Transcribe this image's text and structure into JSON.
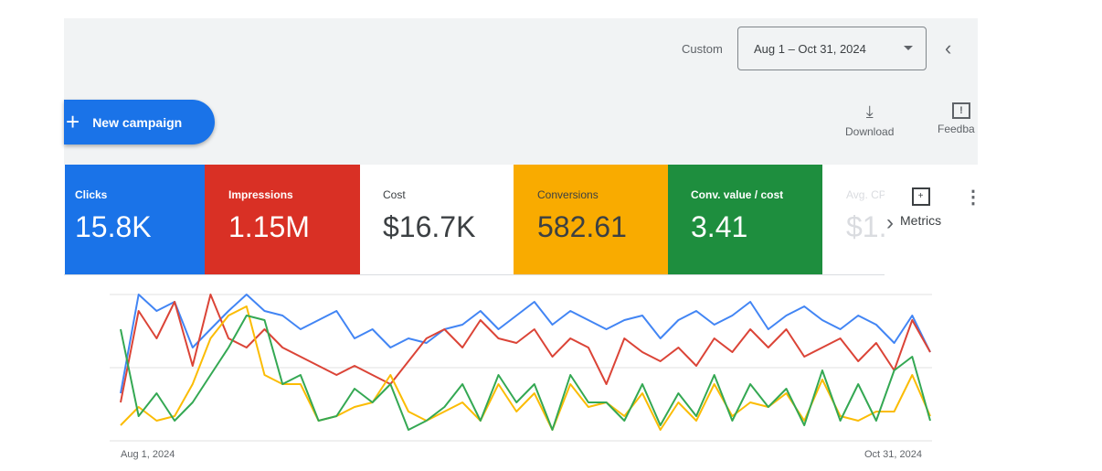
{
  "header": {
    "range_label": "Custom",
    "date_range": "Aug 1 – Oct 31, 2024"
  },
  "toolbar": {
    "new_campaign": "New campaign",
    "download": "Download",
    "feedback": "Feedba"
  },
  "cards": [
    {
      "label": "Clicks",
      "value": "15.8K",
      "color": "#1a73e8"
    },
    {
      "label": "Impressions",
      "value": "1.15M",
      "color": "#d93025"
    },
    {
      "label": "Cost",
      "value": "$16.7K",
      "color": "#ffffff"
    },
    {
      "label": "Conversions",
      "value": "582.61",
      "color": "#f9ab00"
    },
    {
      "label": "Conv. value / cost",
      "value": "3.41",
      "color": "#1e8e3e"
    },
    {
      "label": "Avg. CPC",
      "value": "$1."
    }
  ],
  "metrics_label": "Metrics",
  "chart_data": {
    "type": "line",
    "x_start": "Aug 1, 2024",
    "x_end": "Oct 31, 2024",
    "ylim": [
      0,
      160
    ],
    "grid": true,
    "series": [
      {
        "name": "Clicks",
        "color": "#4285f4",
        "values": [
          52,
          160,
          142,
          152,
          102,
          122,
          142,
          160,
          142,
          137,
          122,
          132,
          142,
          112,
          122,
          102,
          112,
          107,
          122,
          127,
          142,
          122,
          137,
          152,
          127,
          142,
          132,
          122,
          132,
          137,
          112,
          132,
          142,
          127,
          137,
          152,
          122,
          137,
          147,
          132,
          122,
          137,
          127,
          107,
          137,
          97
        ]
      },
      {
        "name": "Impressions",
        "color": "#db4437",
        "values": [
          42,
          142,
          112,
          152,
          82,
          160,
          112,
          102,
          122,
          102,
          92,
          82,
          72,
          82,
          72,
          62,
          87,
          112,
          122,
          102,
          132,
          112,
          107,
          122,
          92,
          112,
          102,
          62,
          112,
          97,
          87,
          102,
          82,
          112,
          97,
          122,
          102,
          122,
          92,
          102,
          112,
          87,
          107,
          77,
          132,
          97
        ]
      },
      {
        "name": "Conversions",
        "color": "#fbbc04",
        "values": [
          17,
          37,
          22,
          27,
          62,
          112,
          137,
          147,
          72,
          62,
          62,
          22,
          27,
          37,
          42,
          72,
          32,
          22,
          32,
          42,
          22,
          62,
          32,
          52,
          12,
          62,
          37,
          42,
          27,
          52,
          12,
          42,
          22,
          62,
          27,
          42,
          37,
          52,
          22,
          67,
          27,
          22,
          32,
          32,
          72,
          27
        ]
      },
      {
        "name": "Conv. value / cost",
        "color": "#34a853",
        "values": [
          122,
          27,
          52,
          22,
          42,
          72,
          102,
          137,
          132,
          62,
          72,
          22,
          27,
          57,
          42,
          62,
          12,
          22,
          37,
          62,
          22,
          72,
          42,
          62,
          12,
          72,
          42,
          42,
          22,
          62,
          17,
          52,
          27,
          72,
          22,
          62,
          37,
          57,
          17,
          77,
          22,
          62,
          22,
          77,
          92,
          22
        ]
      }
    ]
  }
}
